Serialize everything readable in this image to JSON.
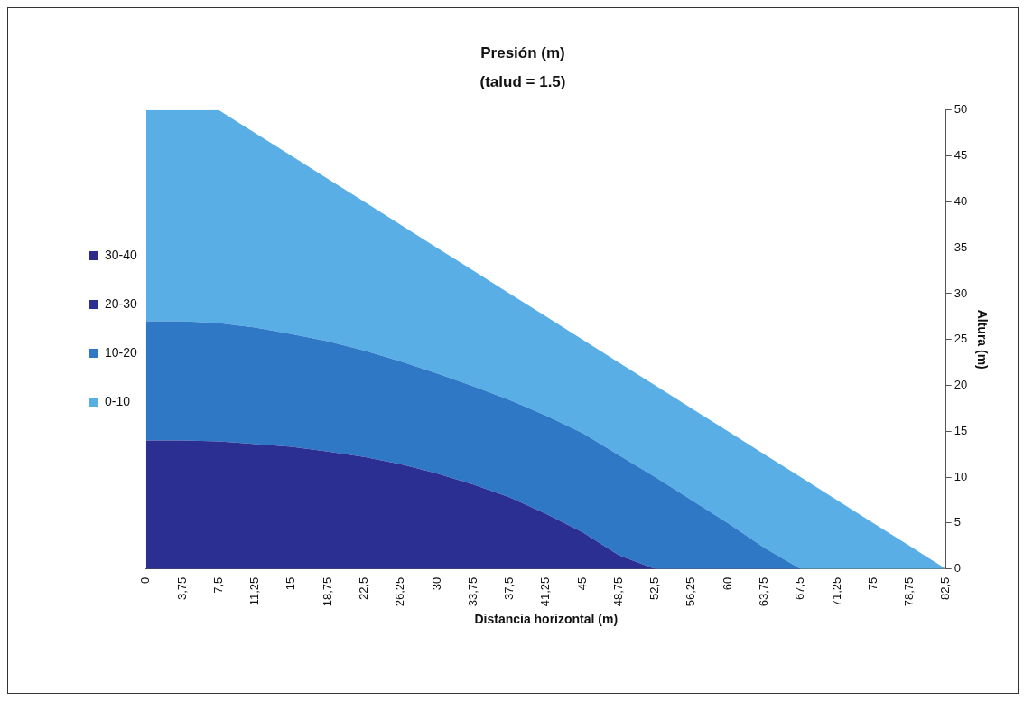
{
  "chart_data": {
    "type": "area",
    "title": "Presión (m)",
    "subtitle": "(talud = 1.5)",
    "xlabel": "Distancia horizontal (m)",
    "ylabel": "Altura (m)",
    "categories": [
      "0",
      "3,75",
      "7,5",
      "11,25",
      "15",
      "18,75",
      "22,5",
      "26,25",
      "30",
      "33,75",
      "37,5",
      "41,25",
      "45",
      "48,75",
      "52,5",
      "56,25",
      "60",
      "63,75",
      "67,5",
      "71,25",
      "75",
      "78,75",
      "82,5"
    ],
    "stacked": true,
    "ylim": [
      0,
      50
    ],
    "yticks": [
      0,
      5,
      10,
      15,
      20,
      25,
      30,
      35,
      40,
      45,
      50
    ],
    "grid": false,
    "legend": "left",
    "marker": "none",
    "series": [
      {
        "name": "30-40",
        "color": "#2e2a8a",
        "values": [
          null,
          null,
          null,
          null,
          null,
          null,
          null,
          null,
          null,
          null,
          null,
          null,
          null,
          null,
          null,
          null,
          null,
          null,
          null,
          null,
          null,
          null,
          null
        ]
      },
      {
        "name": "20-30",
        "color": "#2b2f92",
        "values": [
          14,
          14,
          13.9,
          13.6,
          13.3,
          12.8,
          12.2,
          11.4,
          10.4,
          9.2,
          7.8,
          6,
          4,
          1.5,
          0,
          0,
          0,
          0,
          0,
          0,
          0,
          0,
          0
        ]
      },
      {
        "name": "10-20",
        "color": "#2e78c6",
        "values": [
          13,
          13,
          12.9,
          12.7,
          12.3,
          12,
          11.6,
          11.2,
          10.9,
          10.7,
          10.6,
          10.7,
          10.8,
          10.9,
          10,
          7.5,
          5,
          2.3,
          0,
          0,
          0,
          0,
          0
        ]
      },
      {
        "name": "0-10",
        "color": "#5aaee6",
        "values": [
          23,
          23,
          23.2,
          21.2,
          19.4,
          17.7,
          16.2,
          14.9,
          13.7,
          12.6,
          11.6,
          10.8,
          10.2,
          10.1,
          10,
          10,
          10,
          10.2,
          10,
          7.5,
          5,
          2.5,
          0
        ]
      }
    ]
  }
}
